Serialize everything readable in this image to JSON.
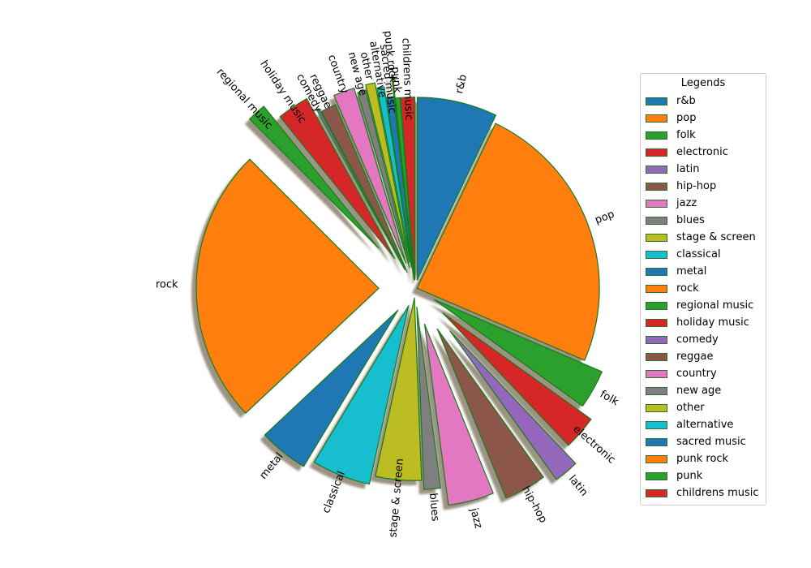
{
  "chart_data": {
    "type": "pie",
    "title": "",
    "legend_title": "Legends",
    "legend_position": "right",
    "shadow": true,
    "edge_color": "#1a7a1a",
    "categories": [
      "r&b",
      "pop",
      "folk",
      "electronic",
      "latin",
      "hip-hop",
      "jazz",
      "blues",
      "stage & screen",
      "classical",
      "metal",
      "rock",
      "regional music",
      "holiday music",
      "comedy",
      "reggae",
      "country",
      "new age",
      "other",
      "alternative",
      "sacred music",
      "punk rock",
      "punk",
      "childrens music"
    ],
    "values": [
      6.8,
      23.4,
      3.3,
      2.9,
      2.1,
      3.6,
      3.9,
      1.4,
      3.9,
      5.0,
      4.2,
      23.5,
      1.6,
      2.7,
      0.2,
      1.3,
      1.8,
      0.7,
      0.8,
      0.6,
      0.6,
      0.1,
      0.4,
      1.2
    ],
    "colors": [
      "#1f77b4",
      "#ff7f0e",
      "#2ca02c",
      "#d62728",
      "#9467bd",
      "#8c564b",
      "#e377c2",
      "#7f7f7f",
      "#bcbd22",
      "#17becf",
      "#1f77b4",
      "#ff7f0e",
      "#2ca02c",
      "#d62728",
      "#9467bd",
      "#8c564b",
      "#e377c2",
      "#7f7f7f",
      "#bcbd22",
      "#17becf",
      "#1f77b4",
      "#ff7f0e",
      "#2ca02c",
      "#d62728"
    ],
    "explode": [
      0.05,
      0.01,
      0.12,
      0.2,
      0.3,
      0.25,
      0.2,
      0.1,
      0.05,
      0.1,
      0.15,
      0.2,
      0.3,
      0.2,
      0.12,
      0.1,
      0.15,
      0.12,
      0.15,
      0.12,
      0.06,
      0.18,
      0.05,
      0.05
    ]
  }
}
